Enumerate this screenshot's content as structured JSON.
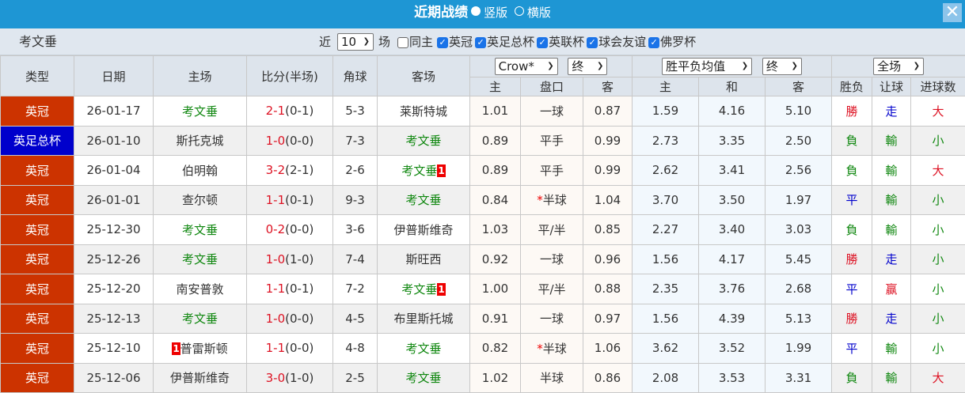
{
  "titlebar": {
    "title": "近期战绩",
    "opt_vertical": "竖版",
    "opt_horizontal": "横版",
    "selected": "竖版",
    "close_icon": "close-icon"
  },
  "filter": {
    "team": "考文垂",
    "near_label": "近",
    "count": "10",
    "games_label": "场",
    "checkboxes": [
      {
        "label": "同主",
        "checked": false
      },
      {
        "label": "英冠",
        "checked": true
      },
      {
        "label": "英足总杯",
        "checked": true
      },
      {
        "label": "英联杯",
        "checked": true
      },
      {
        "label": "球会友谊",
        "checked": true
      },
      {
        "label": "佛罗杯",
        "checked": true
      }
    ]
  },
  "header": {
    "type": "类型",
    "date": "日期",
    "home": "主场",
    "score": "比分(半场)",
    "corner": "角球",
    "away": "客场",
    "ah_company": "Crow*",
    "ah_stage": "终",
    "eu_type": "胜平负均值",
    "eu_stage": "终",
    "result_scope": "全场",
    "ah_home": "主",
    "ah_line": "盘口",
    "ah_away": "客",
    "eu_home": "主",
    "eu_draw": "和",
    "eu_away": "客",
    "res_wl": "胜负",
    "res_ah": "让球",
    "res_ou": "进球数"
  },
  "colors": {
    "title_bar": "#1e96d4",
    "league_champ": "#cc3300",
    "fa_cup": "#0000cc",
    "team_highlight": "#118811",
    "score": "#dd1122"
  },
  "rows": [
    {
      "type": "英冠",
      "date": "26-01-17",
      "home": "考文垂",
      "home_badge": "",
      "ft": "2-1",
      "ht": "(0-1)",
      "corner": "5-3",
      "away": "莱斯特城",
      "away_badge": "",
      "ah_h": "1.01",
      "ah_line": "一球",
      "ah_a": "0.87",
      "eu_h": "1.59",
      "eu_d": "4.16",
      "eu_a": "5.10",
      "wl": "勝",
      "ah": "走",
      "ou": "大"
    },
    {
      "type": "英足总杯",
      "date": "26-01-10",
      "home": "斯托克城",
      "home_badge": "",
      "ft": "1-0",
      "ht": "(0-0)",
      "corner": "7-3",
      "away": "考文垂",
      "away_badge": "",
      "ah_h": "0.89",
      "ah_line": "平手",
      "ah_a": "0.99",
      "eu_h": "2.73",
      "eu_d": "3.35",
      "eu_a": "2.50",
      "wl": "負",
      "ah": "輸",
      "ou": "小"
    },
    {
      "type": "英冠",
      "date": "26-01-04",
      "home": "伯明翰",
      "home_badge": "",
      "ft": "3-2",
      "ht": "(2-1)",
      "corner": "2-6",
      "away": "考文垂",
      "away_badge": "1",
      "ah_h": "0.89",
      "ah_line": "平手",
      "ah_a": "0.99",
      "eu_h": "2.62",
      "eu_d": "3.41",
      "eu_a": "2.56",
      "wl": "負",
      "ah": "輸",
      "ou": "大"
    },
    {
      "type": "英冠",
      "date": "26-01-01",
      "home": "查尔顿",
      "home_badge": "",
      "ft": "1-1",
      "ht": "(0-1)",
      "corner": "9-3",
      "away": "考文垂",
      "away_badge": "",
      "ah_h": "0.84",
      "ah_line": "*半球",
      "ah_a": "1.04",
      "eu_h": "3.70",
      "eu_d": "3.50",
      "eu_a": "1.97",
      "wl": "平",
      "ah": "輸",
      "ou": "小"
    },
    {
      "type": "英冠",
      "date": "25-12-30",
      "home": "考文垂",
      "home_badge": "",
      "ft": "0-2",
      "ht": "(0-0)",
      "corner": "3-6",
      "away": "伊普斯维奇",
      "away_badge": "",
      "ah_h": "1.03",
      "ah_line": "平/半",
      "ah_a": "0.85",
      "eu_h": "2.27",
      "eu_d": "3.40",
      "eu_a": "3.03",
      "wl": "負",
      "ah": "輸",
      "ou": "小"
    },
    {
      "type": "英冠",
      "date": "25-12-26",
      "home": "考文垂",
      "home_badge": "",
      "ft": "1-0",
      "ht": "(1-0)",
      "corner": "7-4",
      "away": "斯旺西",
      "away_badge": "",
      "ah_h": "0.92",
      "ah_line": "一球",
      "ah_a": "0.96",
      "eu_h": "1.56",
      "eu_d": "4.17",
      "eu_a": "5.45",
      "wl": "勝",
      "ah": "走",
      "ou": "小"
    },
    {
      "type": "英冠",
      "date": "25-12-20",
      "home": "南安普敦",
      "home_badge": "",
      "ft": "1-1",
      "ht": "(0-1)",
      "corner": "7-2",
      "away": "考文垂",
      "away_badge": "1",
      "ah_h": "1.00",
      "ah_line": "平/半",
      "ah_a": "0.88",
      "eu_h": "2.35",
      "eu_d": "3.76",
      "eu_a": "2.68",
      "wl": "平",
      "ah": "赢",
      "ou": "小"
    },
    {
      "type": "英冠",
      "date": "25-12-13",
      "home": "考文垂",
      "home_badge": "",
      "ft": "1-0",
      "ht": "(0-0)",
      "corner": "4-5",
      "away": "布里斯托城",
      "away_badge": "",
      "ah_h": "0.91",
      "ah_line": "一球",
      "ah_a": "0.97",
      "eu_h": "1.56",
      "eu_d": "4.39",
      "eu_a": "5.13",
      "wl": "勝",
      "ah": "走",
      "ou": "小"
    },
    {
      "type": "英冠",
      "date": "25-12-10",
      "home": "普雷斯顿",
      "home_badge": "1",
      "ft": "1-1",
      "ht": "(0-0)",
      "corner": "4-8",
      "away": "考文垂",
      "away_badge": "",
      "ah_h": "0.82",
      "ah_line": "*半球",
      "ah_a": "1.06",
      "eu_h": "3.62",
      "eu_d": "3.52",
      "eu_a": "1.99",
      "wl": "平",
      "ah": "輸",
      "ou": "小"
    },
    {
      "type": "英冠",
      "date": "25-12-06",
      "home": "伊普斯维奇",
      "home_badge": "",
      "ft": "3-0",
      "ht": "(1-0)",
      "corner": "2-5",
      "away": "考文垂",
      "away_badge": "",
      "ah_h": "1.02",
      "ah_line": "半球",
      "ah_a": "0.86",
      "eu_h": "2.08",
      "eu_d": "3.53",
      "eu_a": "3.31",
      "wl": "負",
      "ah": "輸",
      "ou": "大"
    }
  ]
}
